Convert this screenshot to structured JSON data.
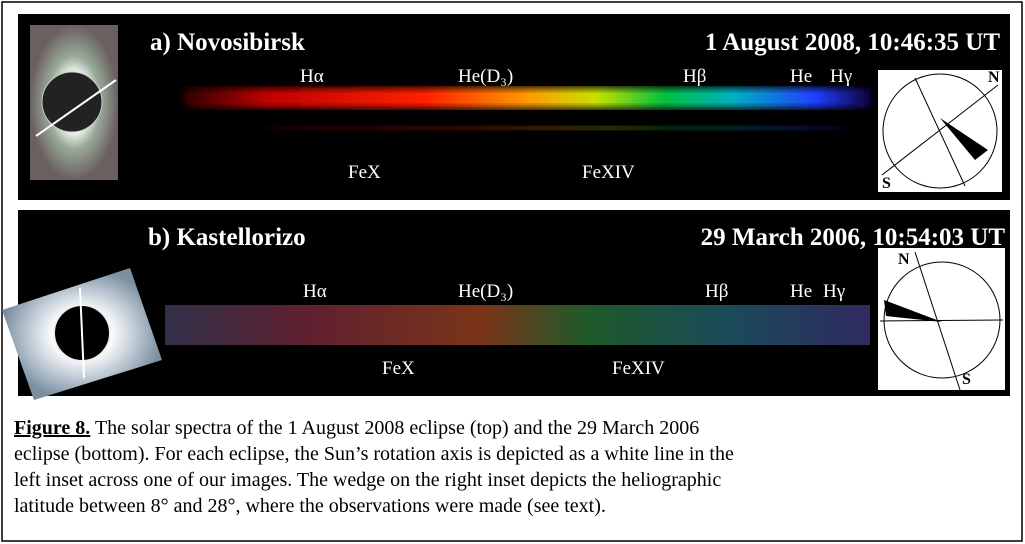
{
  "panels": [
    {
      "title": "a) Novosibirsk",
      "date": "1 August 2008, 10:46:35 UT",
      "lines": [
        "Hα",
        "He(D₃)",
        "Hβ",
        "He",
        "Hγ"
      ],
      "lower_lines": [
        "FeX",
        "FeXIV"
      ],
      "compass": [
        "N",
        "S"
      ]
    },
    {
      "title": "b) Kastellorizo",
      "date": "29 March 2006,  10:54:03 UT",
      "lines": [
        "Hα",
        "He(D₃)",
        "Hβ",
        "He",
        "Hγ"
      ],
      "lower_lines": [
        "FeX",
        "FeXIV"
      ],
      "compass": [
        "N",
        "S"
      ]
    }
  ],
  "caption": {
    "label": "Figure 8.",
    "lines": [
      "The solar spectra of the 1 August 2008 eclipse (top) and the 29 March 2006",
      "eclipse (bottom). For each eclipse, the Sun’s rotation axis is depicted as a white line in the",
      "left inset across one of our images. The wedge on the right inset depicts the heliographic",
      "latitude between 8° and 28°, where the observations were made (see text)."
    ]
  }
}
